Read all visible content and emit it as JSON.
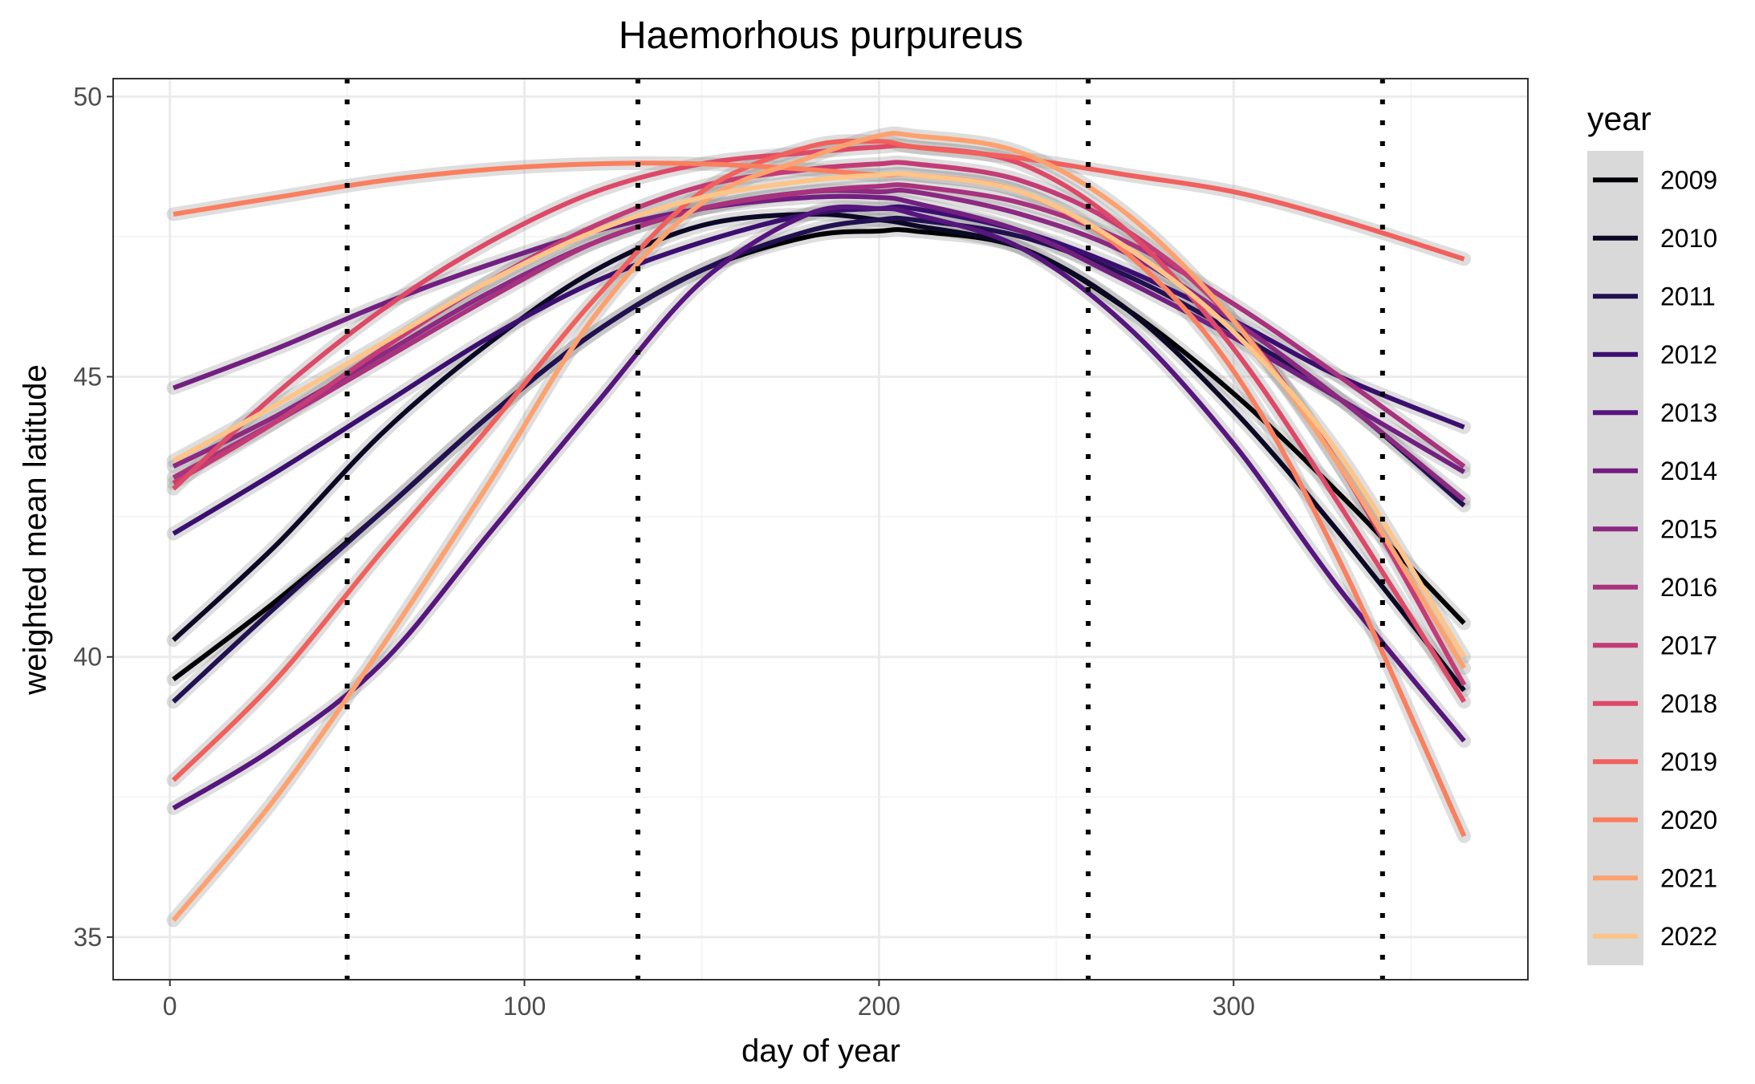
{
  "chart_data": {
    "type": "line",
    "title": "Haemorhous purpureus",
    "xlabel": "day of year",
    "ylabel": "weighted mean latitude",
    "xlim": [
      -16,
      383
    ],
    "ylim": [
      34.24,
      50.32
    ],
    "x_ticks": [
      0,
      100,
      200,
      300
    ],
    "x_tick_labels": [
      "0",
      "100",
      "200",
      "300"
    ],
    "y_ticks": [
      35,
      40,
      45,
      50
    ],
    "y_tick_labels": [
      "35",
      "40",
      "45",
      "50"
    ],
    "grid": true,
    "legend_position": "right",
    "legend_title": "year",
    "vlines": [
      50,
      132,
      259,
      342
    ],
    "x": [
      1,
      30,
      60,
      90,
      120,
      150,
      180,
      200,
      210,
      240,
      270,
      300,
      330,
      365
    ],
    "series": [
      {
        "name": "2009",
        "color": "#000004",
        "values": [
          39.6,
          41.0,
          42.6,
          44.3,
          45.8,
          46.9,
          47.5,
          47.6,
          47.6,
          47.3,
          46.2,
          44.7,
          42.9,
          40.6
        ]
      },
      {
        "name": "2010",
        "color": "#0C0926",
        "values": [
          40.3,
          42.0,
          44.0,
          45.6,
          46.9,
          47.7,
          47.9,
          47.8,
          47.7,
          47.3,
          46.2,
          44.4,
          42.2,
          39.4
        ]
      },
      {
        "name": "2011",
        "color": "#221150",
        "values": [
          39.2,
          40.9,
          42.6,
          44.3,
          45.8,
          46.9,
          47.6,
          47.8,
          47.8,
          47.5,
          46.8,
          45.8,
          44.6,
          42.7
        ]
      },
      {
        "name": "2012",
        "color": "#3B0F70",
        "values": [
          42.2,
          43.3,
          44.5,
          45.7,
          46.7,
          47.4,
          47.9,
          48.0,
          48.0,
          47.6,
          46.9,
          46.0,
          45.0,
          44.1
        ]
      },
      {
        "name": "2013",
        "color": "#57157E",
        "values": [
          37.3,
          38.4,
          39.9,
          42.2,
          44.5,
          46.7,
          47.9,
          48.0,
          47.9,
          47.3,
          45.9,
          43.8,
          41.2,
          38.5
        ]
      },
      {
        "name": "2014",
        "color": "#721F81",
        "values": [
          44.8,
          45.5,
          46.3,
          47.0,
          47.6,
          48.0,
          48.2,
          48.2,
          48.1,
          47.6,
          46.7,
          45.7,
          44.6,
          43.3
        ]
      },
      {
        "name": "2015",
        "color": "#8C2981",
        "values": [
          43.4,
          44.3,
          45.4,
          46.5,
          47.4,
          48.0,
          48.3,
          48.3,
          48.3,
          47.9,
          47.2,
          46.0,
          44.6,
          42.8
        ]
      },
      {
        "name": "2016",
        "color": "#A8327D",
        "values": [
          43.2,
          44.2,
          45.3,
          46.4,
          47.4,
          48.0,
          48.3,
          48.4,
          48.4,
          48.1,
          47.4,
          46.3,
          45.0,
          43.4
        ]
      },
      {
        "name": "2017",
        "color": "#C43C75",
        "values": [
          43.1,
          44.2,
          45.5,
          46.7,
          47.7,
          48.4,
          48.7,
          48.8,
          48.8,
          48.5,
          47.6,
          46.0,
          43.4,
          39.5
        ]
      },
      {
        "name": "2018",
        "color": "#DE4968",
        "values": [
          43.0,
          44.7,
          46.2,
          47.4,
          48.3,
          48.8,
          49.0,
          49.1,
          49.1,
          48.8,
          47.6,
          45.5,
          42.7,
          39.2
        ]
      },
      {
        "name": "2019",
        "color": "#F1605D",
        "values": [
          37.8,
          39.6,
          41.9,
          44.1,
          46.4,
          48.3,
          49.1,
          49.2,
          49.1,
          48.9,
          48.6,
          48.3,
          47.8,
          47.1
        ]
      },
      {
        "name": "2020",
        "color": "#FA7F5E",
        "values": [
          47.9,
          48.2,
          48.5,
          48.7,
          48.8,
          48.8,
          48.7,
          48.6,
          48.6,
          48.3,
          47.2,
          45.1,
          41.7,
          36.8
        ]
      },
      {
        "name": "2021",
        "color": "#FEA16E",
        "values": [
          35.3,
          37.5,
          40.2,
          43.1,
          46.1,
          48.1,
          48.9,
          49.3,
          49.3,
          49.0,
          47.9,
          46.0,
          43.4,
          39.8
        ]
      },
      {
        "name": "2022",
        "color": "#FEC488",
        "values": [
          43.5,
          44.5,
          45.6,
          46.7,
          47.6,
          48.2,
          48.5,
          48.6,
          48.6,
          48.3,
          47.3,
          45.8,
          43.6,
          40.0
        ]
      }
    ],
    "colors": {
      "panel_border": "#333333",
      "grid_major": "#EBEBEB",
      "grid_minor": "#F5F5F5",
      "ribbon": "#999999",
      "legend_key_bg": "#D9D9D9",
      "legend_color_override": [
        "#000004",
        "#0C0926",
        "#221150",
        "#3B0F70",
        "#57157E",
        "#721F81",
        "#8C2981",
        "#A8327D",
        "#C43C75",
        "#DE4968",
        "#F1605D",
        "#FA7F5E",
        "#FEA16E",
        "#FEC488"
      ]
    }
  }
}
